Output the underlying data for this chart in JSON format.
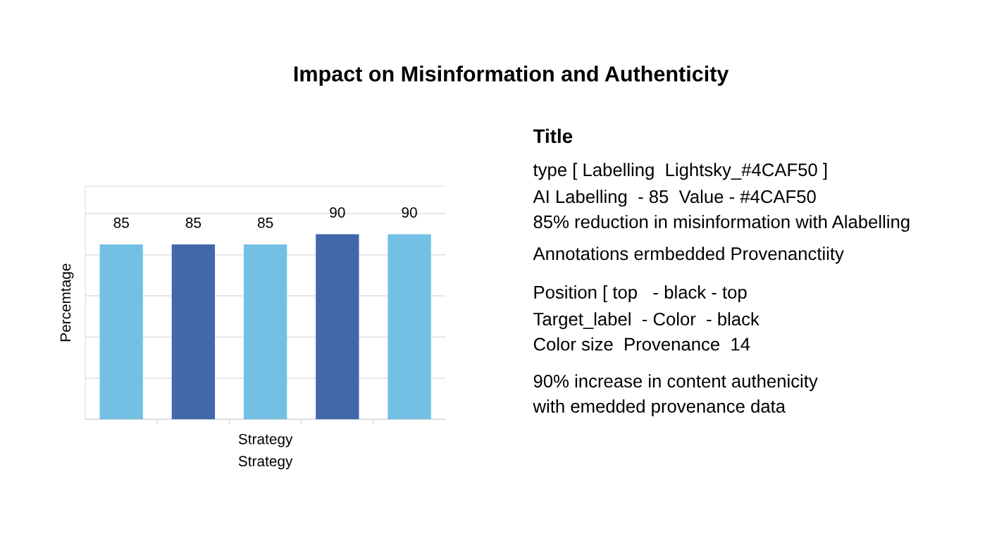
{
  "chart_data": [
    {
      "type": "bar",
      "title": "Impact on Misinformation and Authenticity",
      "xlabel": "Strategy",
      "ylabel": "Percemtage",
      "categories": [
        null,
        null,
        null,
        null,
        null
      ],
      "values": [
        85,
        85,
        85,
        90,
        90
      ],
      "data_labels": true,
      "colors": [
        "#74c0e4",
        "#4267ab",
        "#74c0e4",
        "#4267ab",
        "#74c0e4"
      ],
      "annotations": [
        "Strategy"
      ],
      "grid": "y",
      "legend": false
    },
    {
      "type": "other",
      "title": "Title",
      "annotations": [
        "type [ Labelling  Lightsky_#4CAF50 ]",
        "AI Labelling  - 85  Value - #4CAF50",
        "85% reduction in misinformation with Alabelling",
        "Annotations ermbedded Provenanctiity",
        "Position [ top   - black - top",
        "Target_label  - Color  - black",
        "Color size  Provenance  14",
        "90% increase in content authenicity",
        "with emedded provenance data"
      ]
    }
  ]
}
